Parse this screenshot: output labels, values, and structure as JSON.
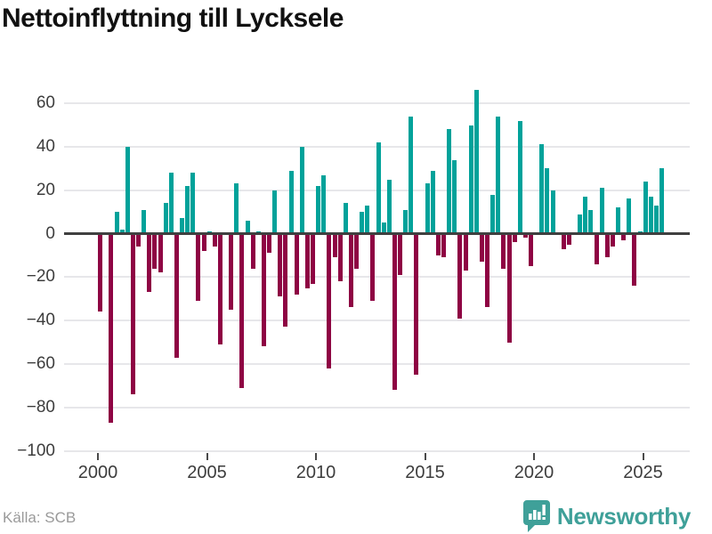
{
  "title": "Nettoinflyttning till Lycksele",
  "source": "Källa: SCB",
  "branding": {
    "logo_text": "Newsworthy",
    "logo_color": "#3FA099"
  },
  "chart_data": {
    "type": "bar",
    "title": "Nettoinflyttning till Lycksele",
    "period": "quarterly",
    "x_range": [
      "2000-Q1",
      "2025-Q4"
    ],
    "x_tick_labels": [
      "2000",
      "2005",
      "2010",
      "2015",
      "2020",
      "2025"
    ],
    "y_ticks": [
      60,
      40,
      20,
      0,
      -20,
      -40,
      -60,
      -80,
      -100
    ],
    "ylim": [
      -100,
      70
    ],
    "grid": "horizontal",
    "legend": "none",
    "colors": {
      "positive": "#00A29A",
      "negative": "#8E0343",
      "zero_line": "#404040",
      "gridline": "#E7E7EA",
      "axis_text": "#3D3D3D"
    },
    "values_by_year": {
      "2000": [
        -36,
        0,
        -87,
        10
      ],
      "2001": [
        2,
        40,
        -74,
        -6
      ],
      "2002": [
        11,
        -27,
        -16,
        -18
      ],
      "2003": [
        14,
        28,
        -57,
        7
      ],
      "2004": [
        22,
        28,
        -31,
        -8
      ],
      "2005": [
        1,
        -6,
        -51,
        0
      ],
      "2006": [
        -35,
        23,
        -71,
        6
      ],
      "2007": [
        -16,
        1,
        -52,
        -9
      ],
      "2008": [
        20,
        -29,
        -43,
        29
      ],
      "2009": [
        -28,
        40,
        -25,
        -23
      ],
      "2010": [
        22,
        27,
        -62,
        -11
      ],
      "2011": [
        -22,
        14,
        -34,
        -16
      ],
      "2012": [
        10,
        13,
        -31,
        42
      ],
      "2013": [
        5,
        25,
        -72,
        -19
      ],
      "2014": [
        11,
        54,
        -65,
        0
      ],
      "2015": [
        23,
        29,
        -10,
        -11
      ],
      "2016": [
        48,
        34,
        -39,
        -17
      ],
      "2017": [
        50,
        66,
        -13,
        -34
      ],
      "2018": [
        18,
        54,
        -16,
        -50
      ],
      "2019": [
        -4,
        52,
        -2,
        -15
      ],
      "2020": [
        0,
        41,
        30,
        20
      ],
      "2021": [
        0,
        -7,
        -5,
        0
      ],
      "2022": [
        9,
        17,
        11,
        -14
      ],
      "2023": [
        21,
        -11,
        -6,
        12
      ],
      "2024": [
        -3,
        16,
        -24,
        1
      ],
      "2025": [
        24,
        17,
        13,
        30
      ]
    }
  }
}
